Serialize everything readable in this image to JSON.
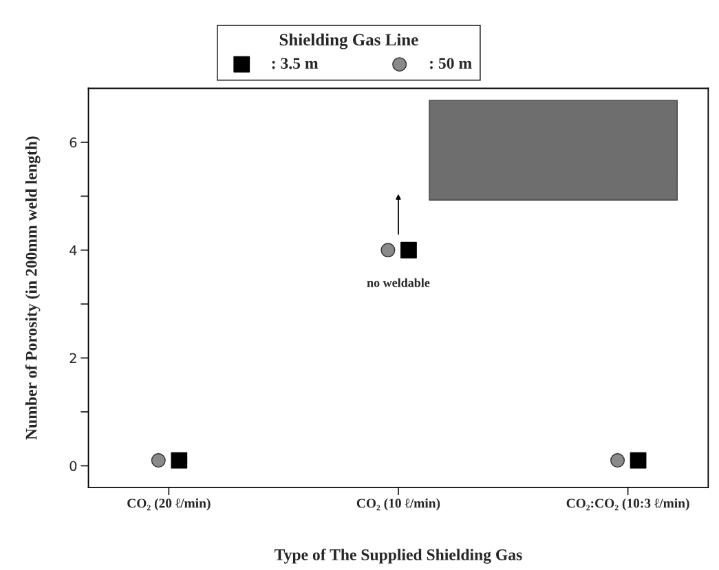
{
  "chart_data": {
    "type": "scatter",
    "xlabel": "Type of The Supplied Shielding Gas",
    "ylabel": "Number of Porosity (in 200mm weld length)",
    "legend_title": "Shielding Gas Line",
    "categories": [
      "CO₂ (20 ℓ/min)",
      "CO₂ (10 ℓ/min)",
      "CO₂:CO₂ (10:3 ℓ/min)"
    ],
    "series": [
      {
        "name": ": 3.5 m",
        "color": "#000000",
        "marker": "square",
        "values": [
          0.1,
          4.0,
          0.1
        ]
      },
      {
        "name": ": 50 m",
        "color": "#8a8a8a",
        "marker": "circle",
        "values": [
          0.1,
          4.0,
          0.1
        ]
      }
    ],
    "ylim": [
      -0.4,
      7
    ],
    "yticks": [
      0,
      {
        "value": 1,
        "label": null
      },
      2,
      {
        "value": 3,
        "label": null
      },
      4,
      {
        "value": 5,
        "label": null
      },
      6
    ],
    "annotations": [
      "no weldable"
    ],
    "legend": "top",
    "grid": false
  }
}
